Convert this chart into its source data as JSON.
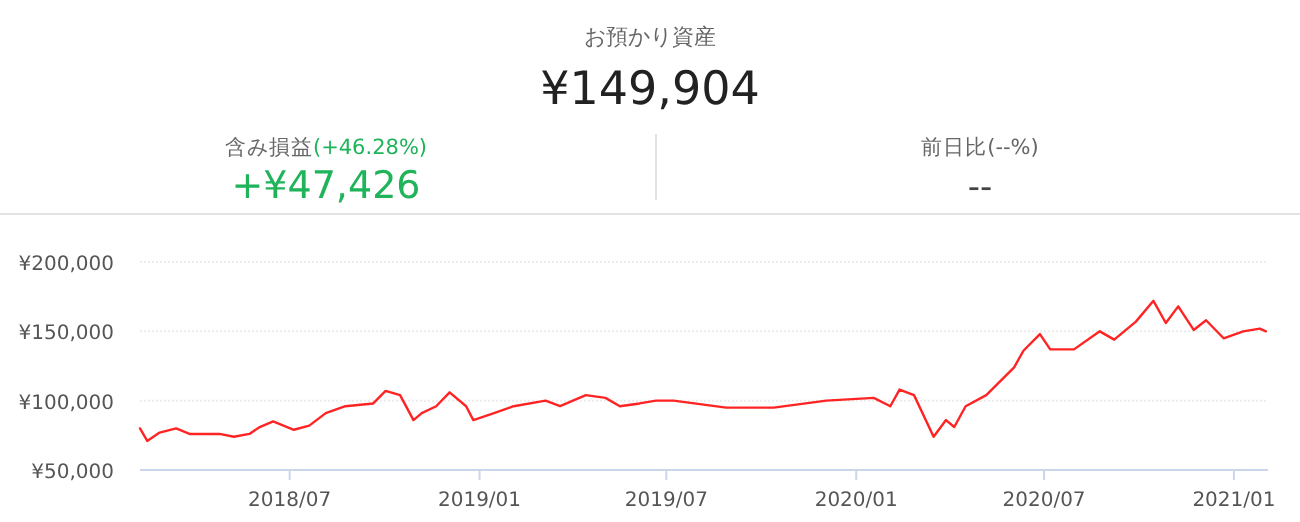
{
  "chart_data": {
    "type": "line",
    "title": "お預かり資産",
    "subtitle": "¥149,904",
    "annotations": [
      "含み損益",
      "(+46.28%)",
      "+¥47,426",
      "前日比(--%)",
      "--"
    ],
    "x": [
      "2018-02-06",
      "2018-02-13",
      "2018-02-25",
      "2018-03-13",
      "2018-03-26",
      "2018-04-24",
      "2018-05-08",
      "2018-05-23",
      "2018-06-02",
      "2018-06-15",
      "2018-07-05",
      "2018-07-20",
      "2018-08-05",
      "2018-08-24",
      "2018-09-20",
      "2018-10-02",
      "2018-10-16",
      "2018-10-29",
      "2018-11-06",
      "2018-11-20",
      "2018-12-03",
      "2018-12-19",
      "2018-12-26",
      "2019-01-15",
      "2019-02-03",
      "2019-03-06",
      "2019-03-20",
      "2019-04-14",
      "2019-05-03",
      "2019-05-17",
      "2019-06-05",
      "2019-06-21",
      "2019-07-08",
      "2019-08-28",
      "2019-10-13",
      "2019-12-03",
      "2020-01-18",
      "2020-02-03",
      "2020-02-12",
      "2020-02-26",
      "2020-03-16",
      "2020-03-28",
      "2020-04-05",
      "2020-04-16",
      "2020-05-06",
      "2020-06-02",
      "2020-06-11",
      "2020-06-27",
      "2020-07-07",
      "2020-07-30",
      "2020-08-24",
      "2020-09-07",
      "2020-09-28",
      "2020-10-15",
      "2020-10-27",
      "2020-11-08",
      "2020-11-23",
      "2020-12-05",
      "2020-12-22",
      "2021-01-10",
      "2021-01-26",
      "2021-02-01"
    ],
    "series": [
      {
        "color": "#ff2424",
        "values": [
          80000,
          71000,
          77000,
          80000,
          76000,
          76000,
          74000,
          76000,
          81000,
          85000,
          79000,
          82000,
          91000,
          96000,
          98000,
          107000,
          104000,
          86000,
          91000,
          96000,
          106000,
          96000,
          86000,
          91000,
          96000,
          100000,
          96000,
          104000,
          102000,
          96000,
          98000,
          100000,
          100000,
          95000,
          95000,
          100000,
          102000,
          96000,
          108000,
          104000,
          74000,
          86000,
          81000,
          96000,
          104000,
          124000,
          136000,
          148000,
          137000,
          137000,
          150000,
          144000,
          157000,
          172000,
          156000,
          168000,
          151000,
          158000,
          145000,
          150000,
          152000,
          150000
        ]
      }
    ],
    "xlim": [
      "2018-02-06",
      "2021-02-03"
    ],
    "xticks": [
      {
        "value": "2018-07",
        "label": "2018/07"
      },
      {
        "value": "2019-01",
        "label": "2019/01"
      },
      {
        "value": "2019-07",
        "label": "2019/07"
      },
      {
        "value": "2020-01",
        "label": "2020/01"
      },
      {
        "value": "2020-07",
        "label": "2020/07"
      },
      {
        "value": "2021-01",
        "label": "2021/01"
      }
    ],
    "ylim": [
      50000,
      200000
    ],
    "yticks": [
      {
        "value": 50000,
        "label": "¥50,000"
      },
      {
        "value": 100000,
        "label": "¥100,000"
      },
      {
        "value": 150000,
        "label": "¥150,000"
      },
      {
        "value": 200000,
        "label": "¥200,000"
      }
    ],
    "grid": "y",
    "marker": "none",
    "line_style": "solid"
  }
}
